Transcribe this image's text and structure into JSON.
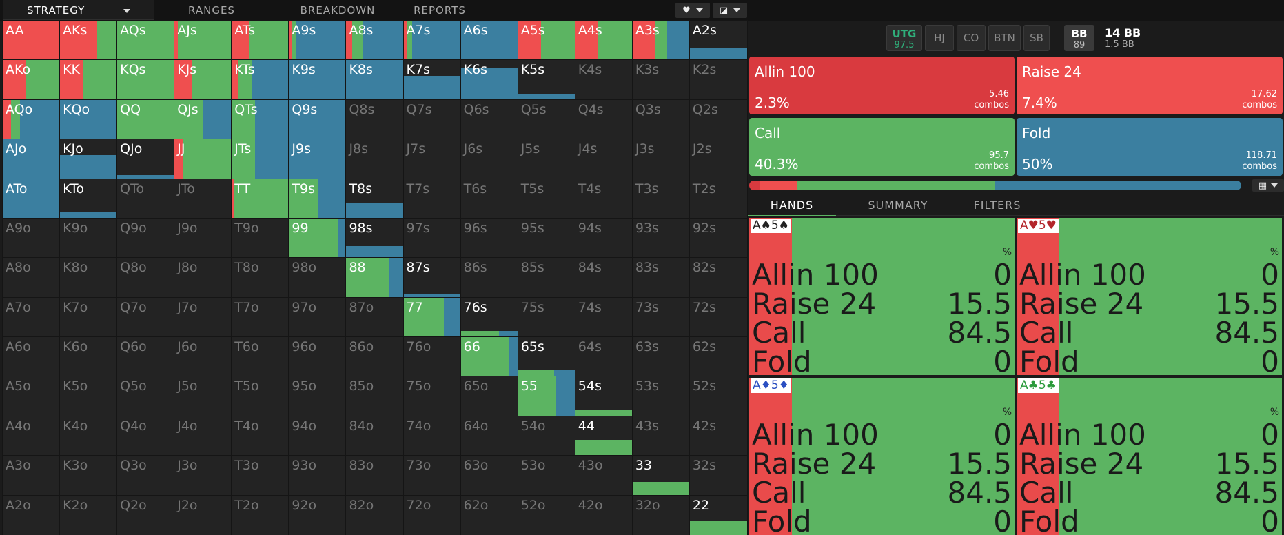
{
  "nav": {
    "tabs": [
      "STRATEGY",
      "RANGES",
      "BREAKDOWN",
      "REPORTS"
    ],
    "active": 0
  },
  "colors": {
    "allin": "#d93a3f",
    "raise": "#ef4f4f",
    "call": "#5cb462",
    "fold": "#3b7fa0",
    "empty": "#232323",
    "utg": "#2fae7a"
  },
  "grid": {
    "ranks": [
      "A",
      "K",
      "Q",
      "J",
      "T",
      "9",
      "8",
      "7",
      "6",
      "5",
      "4",
      "3",
      "2"
    ],
    "strategy": [
      [
        [
          0,
          1,
          0,
          0
        ],
        [
          0,
          0.65,
          0.35,
          0
        ],
        [
          0,
          0,
          1,
          0
        ],
        [
          0,
          0.06,
          0.94,
          0
        ],
        [
          0,
          0.3,
          0.7,
          0
        ],
        [
          0,
          0.06,
          0.06,
          0.88
        ],
        [
          0,
          0.1,
          0.2,
          0.7
        ],
        [
          0,
          0.05,
          0.1,
          0.85
        ],
        [
          0,
          0,
          0,
          1
        ],
        [
          0,
          0.4,
          0.6,
          0
        ],
        [
          0,
          0.4,
          0.6,
          0
        ],
        [
          0,
          0.4,
          0.2,
          0.4
        ],
        [
          0,
          0,
          0,
          0.3
        ]
      ],
      [
        [
          0,
          0.4,
          0.6,
          0
        ],
        [
          0,
          0.4,
          0.6,
          0
        ],
        [
          0,
          0,
          1,
          0
        ],
        [
          0,
          0.3,
          0.7,
          0
        ],
        [
          0,
          0.1,
          0.25,
          0.65
        ],
        [
          0,
          0,
          0,
          1
        ],
        [
          0,
          0,
          0,
          1
        ],
        [
          0,
          0,
          0,
          0.6
        ],
        [
          0,
          0,
          0,
          0.8
        ],
        [
          0,
          0,
          0,
          0.15
        ],
        [
          0,
          0,
          0,
          0
        ],
        [
          0,
          0,
          0,
          0
        ],
        [
          0,
          0,
          0,
          0
        ]
      ],
      [
        [
          0,
          0.15,
          0.15,
          0.7
        ],
        [
          0,
          0,
          0,
          1
        ],
        [
          0,
          0,
          1,
          0
        ],
        [
          0,
          0,
          0.5,
          0.5
        ],
        [
          0,
          0,
          0.4,
          0.6
        ],
        [
          0,
          0,
          0,
          1
        ],
        [
          0,
          0,
          0,
          0
        ],
        [
          0,
          0,
          0,
          0
        ],
        [
          0,
          0,
          0,
          0
        ],
        [
          0,
          0,
          0,
          0
        ],
        [
          0,
          0,
          0,
          0
        ],
        [
          0,
          0,
          0,
          0
        ],
        [
          0,
          0,
          0,
          0
        ]
      ],
      [
        [
          0,
          0,
          0,
          1
        ],
        [
          0,
          0,
          0,
          0.6
        ],
        [
          0,
          0,
          0,
          0.1
        ],
        [
          0,
          0.15,
          0.85,
          0
        ],
        [
          0,
          0,
          0.4,
          0.6
        ],
        [
          0,
          0,
          0,
          1
        ],
        [
          0,
          0,
          0,
          0
        ],
        [
          0,
          0,
          0,
          0
        ],
        [
          0,
          0,
          0,
          0
        ],
        [
          0,
          0,
          0,
          0
        ],
        [
          0,
          0,
          0,
          0
        ],
        [
          0,
          0,
          0,
          0
        ],
        [
          0,
          0,
          0,
          0
        ]
      ],
      [
        [
          0,
          0,
          0,
          1
        ],
        [
          0,
          0,
          0,
          0.15
        ],
        [
          0,
          0,
          0,
          0
        ],
        [
          0,
          0,
          0,
          0
        ],
        [
          0,
          0.05,
          0.95,
          0
        ],
        [
          0,
          0,
          0.5,
          0.5
        ],
        [
          0,
          0,
          0,
          0.4
        ],
        [
          0,
          0,
          0,
          0
        ],
        [
          0,
          0,
          0,
          0
        ],
        [
          0,
          0,
          0,
          0
        ],
        [
          0,
          0,
          0,
          0
        ],
        [
          0,
          0,
          0,
          0
        ],
        [
          0,
          0,
          0,
          0
        ]
      ],
      [
        [
          0,
          0,
          0,
          0
        ],
        [
          0,
          0,
          0,
          0
        ],
        [
          0,
          0,
          0,
          0
        ],
        [
          0,
          0,
          0,
          0
        ],
        [
          0,
          0,
          0,
          0
        ],
        [
          0,
          0,
          0.85,
          0.15
        ],
        [
          0,
          0,
          0,
          0.3
        ],
        [
          0,
          0,
          0,
          0
        ],
        [
          0,
          0,
          0,
          0
        ],
        [
          0,
          0,
          0,
          0
        ],
        [
          0,
          0,
          0,
          0
        ],
        [
          0,
          0,
          0,
          0
        ],
        [
          0,
          0,
          0,
          0
        ]
      ],
      [
        [
          0,
          0,
          0,
          0
        ],
        [
          0,
          0,
          0,
          0
        ],
        [
          0,
          0,
          0,
          0
        ],
        [
          0,
          0,
          0,
          0
        ],
        [
          0,
          0,
          0,
          0
        ],
        [
          0,
          0,
          0,
          0
        ],
        [
          0,
          0,
          0.75,
          0.25
        ],
        [
          0,
          0,
          0,
          0.05
        ],
        [
          0,
          0,
          0,
          0
        ],
        [
          0,
          0,
          0,
          0
        ],
        [
          0,
          0,
          0,
          0
        ],
        [
          0,
          0,
          0,
          0
        ],
        [
          0,
          0,
          0,
          0
        ]
      ],
      [
        [
          0,
          0,
          0,
          0
        ],
        [
          0,
          0,
          0,
          0
        ],
        [
          0,
          0,
          0,
          0
        ],
        [
          0,
          0,
          0,
          0
        ],
        [
          0,
          0,
          0,
          0
        ],
        [
          0,
          0,
          0,
          0
        ],
        [
          0,
          0,
          0,
          0
        ],
        [
          0,
          0,
          0.7,
          0.3
        ],
        [
          0,
          0,
          0.1,
          0.05
        ],
        [
          0,
          0,
          0,
          0
        ],
        [
          0,
          0,
          0,
          0
        ],
        [
          0,
          0,
          0,
          0
        ],
        [
          0,
          0,
          0,
          0
        ]
      ],
      [
        [
          0,
          0,
          0,
          0
        ],
        [
          0,
          0,
          0,
          0
        ],
        [
          0,
          0,
          0,
          0
        ],
        [
          0,
          0,
          0,
          0
        ],
        [
          0,
          0,
          0,
          0
        ],
        [
          0,
          0,
          0,
          0
        ],
        [
          0,
          0,
          0,
          0
        ],
        [
          0,
          0,
          0,
          0
        ],
        [
          0,
          0,
          0.85,
          0.15
        ],
        [
          0,
          0,
          0.1,
          0.06
        ],
        [
          0,
          0,
          0,
          0
        ],
        [
          0,
          0,
          0,
          0
        ],
        [
          0,
          0,
          0,
          0
        ]
      ],
      [
        [
          0,
          0,
          0,
          0
        ],
        [
          0,
          0,
          0,
          0
        ],
        [
          0,
          0,
          0,
          0
        ],
        [
          0,
          0,
          0,
          0
        ],
        [
          0,
          0,
          0,
          0
        ],
        [
          0,
          0,
          0,
          0
        ],
        [
          0,
          0,
          0,
          0
        ],
        [
          0,
          0,
          0,
          0
        ],
        [
          0,
          0,
          0,
          0
        ],
        [
          0,
          0,
          0.65,
          0.35
        ],
        [
          0,
          0,
          0.15,
          0
        ],
        [
          0,
          0,
          0,
          0
        ],
        [
          0,
          0,
          0,
          0
        ]
      ],
      [
        [
          0,
          0,
          0,
          0
        ],
        [
          0,
          0,
          0,
          0
        ],
        [
          0,
          0,
          0,
          0
        ],
        [
          0,
          0,
          0,
          0
        ],
        [
          0,
          0,
          0,
          0
        ],
        [
          0,
          0,
          0,
          0
        ],
        [
          0,
          0,
          0,
          0
        ],
        [
          0,
          0,
          0,
          0
        ],
        [
          0,
          0,
          0,
          0
        ],
        [
          0,
          0,
          0,
          0
        ],
        [
          0,
          0,
          0.4,
          0
        ],
        [
          0,
          0,
          0,
          0
        ],
        [
          0,
          0,
          0,
          0
        ]
      ],
      [
        [
          0,
          0,
          0,
          0
        ],
        [
          0,
          0,
          0,
          0
        ],
        [
          0,
          0,
          0,
          0
        ],
        [
          0,
          0,
          0,
          0
        ],
        [
          0,
          0,
          0,
          0
        ],
        [
          0,
          0,
          0,
          0
        ],
        [
          0,
          0,
          0,
          0
        ],
        [
          0,
          0,
          0,
          0
        ],
        [
          0,
          0,
          0,
          0
        ],
        [
          0,
          0,
          0,
          0
        ],
        [
          0,
          0,
          0,
          0
        ],
        [
          0,
          0,
          0.35,
          0
        ],
        [
          0,
          0,
          0,
          0
        ]
      ],
      [
        [
          0,
          0,
          0,
          0
        ],
        [
          0,
          0,
          0,
          0
        ],
        [
          0,
          0,
          0,
          0
        ],
        [
          0,
          0,
          0,
          0
        ],
        [
          0,
          0,
          0,
          0
        ],
        [
          0,
          0,
          0,
          0
        ],
        [
          0,
          0,
          0,
          0
        ],
        [
          0,
          0,
          0,
          0
        ],
        [
          0,
          0,
          0,
          0
        ],
        [
          0,
          0,
          0,
          0
        ],
        [
          0,
          0,
          0,
          0
        ],
        [
          0,
          0,
          0,
          0
        ],
        [
          0,
          0,
          0.35,
          0
        ]
      ]
    ]
  },
  "positions": [
    {
      "name": "UTG",
      "stack": "97.5",
      "active": true
    },
    {
      "name": "HJ",
      "stack": ""
    },
    {
      "name": "CO",
      "stack": ""
    },
    {
      "name": "BTN",
      "stack": ""
    },
    {
      "name": "SB",
      "stack": ""
    },
    {
      "name": "BB",
      "stack": "89",
      "highlight": true
    }
  ],
  "stack_info": {
    "pot": "14 BB",
    "to_call": "1.5 BB"
  },
  "actions": [
    {
      "name": "Allin 100",
      "pct": "2.3%",
      "combos": "5.46",
      "combos_label": "combos",
      "pct_value": 2.3
    },
    {
      "name": "Raise 24",
      "pct": "7.4%",
      "combos": "17.62",
      "combos_label": "combos",
      "pct_value": 7.4
    },
    {
      "name": "Call",
      "pct": "40.3%",
      "combos": "95.7",
      "combos_label": "combos",
      "pct_value": 40.3
    },
    {
      "name": "Fold",
      "pct": "50%",
      "combos": "118.71",
      "combos_label": "combos",
      "pct_value": 50
    }
  ],
  "subtabs": [
    "HANDS",
    "SUMMARY",
    "FILTERS"
  ],
  "hands": [
    {
      "combo": "A♠5♠",
      "suit_color": "#222222",
      "pct_label": "%",
      "rows": [
        {
          "name": "Allin 100",
          "value": "0"
        },
        {
          "name": "Raise 24",
          "value": "15.5"
        },
        {
          "name": "Call",
          "value": "84.5"
        },
        {
          "name": "Fold",
          "value": "0"
        }
      ]
    },
    {
      "combo": "A♥5♥",
      "suit_color": "#b3262b",
      "pct_label": "%",
      "rows": [
        {
          "name": "Allin 100",
          "value": "0"
        },
        {
          "name": "Raise 24",
          "value": "15.5"
        },
        {
          "name": "Call",
          "value": "84.5"
        },
        {
          "name": "Fold",
          "value": "0"
        }
      ]
    },
    {
      "combo": "A♦5♦",
      "suit_color": "#2b4fc2",
      "pct_label": "%",
      "rows": [
        {
          "name": "Allin 100",
          "value": "0"
        },
        {
          "name": "Raise 24",
          "value": "15.5"
        },
        {
          "name": "Call",
          "value": "84.5"
        },
        {
          "name": "Fold",
          "value": "0"
        }
      ]
    },
    {
      "combo": "A♣5♣",
      "suit_color": "#2a9a3a",
      "pct_label": "%",
      "rows": [
        {
          "name": "Allin 100",
          "value": "0"
        },
        {
          "name": "Raise 24",
          "value": "15.5"
        },
        {
          "name": "Call",
          "value": "84.5"
        },
        {
          "name": "Fold",
          "value": "0"
        }
      ]
    }
  ]
}
